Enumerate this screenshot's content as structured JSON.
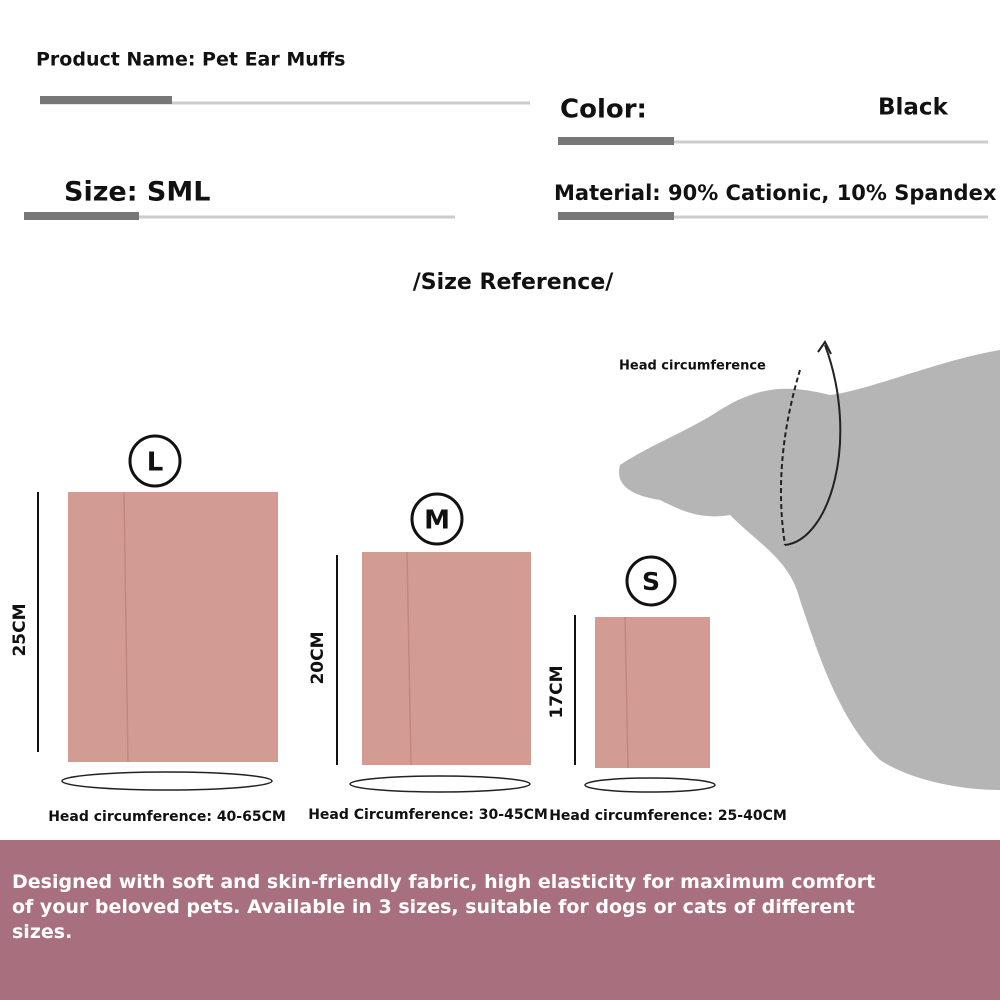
{
  "header": {
    "product_name": "Product Name: Pet Ear Muffs",
    "color_label": "Color:",
    "color_value": "Black",
    "size": "Size: SML",
    "material": "Material: 90% Cationic, 10% Spandex"
  },
  "size_reference": {
    "title": "/Size Reference/",
    "diagram_label": "Head circumference",
    "sizes": [
      {
        "letter": "L",
        "height": "25CM",
        "circumference": "Head circumference: 40-65CM"
      },
      {
        "letter": "M",
        "height": "20CM",
        "circumference": "Head Circumference: 30-45CM"
      },
      {
        "letter": "S",
        "height": "17CM",
        "circumference": "Head circumference: 25-40CM"
      }
    ]
  },
  "footer": {
    "description": "Designed with soft and skin-friendly fabric, high elasticity for maximum comfort of your beloved pets. Available in 3 sizes, suitable for dogs or cats of different sizes."
  }
}
